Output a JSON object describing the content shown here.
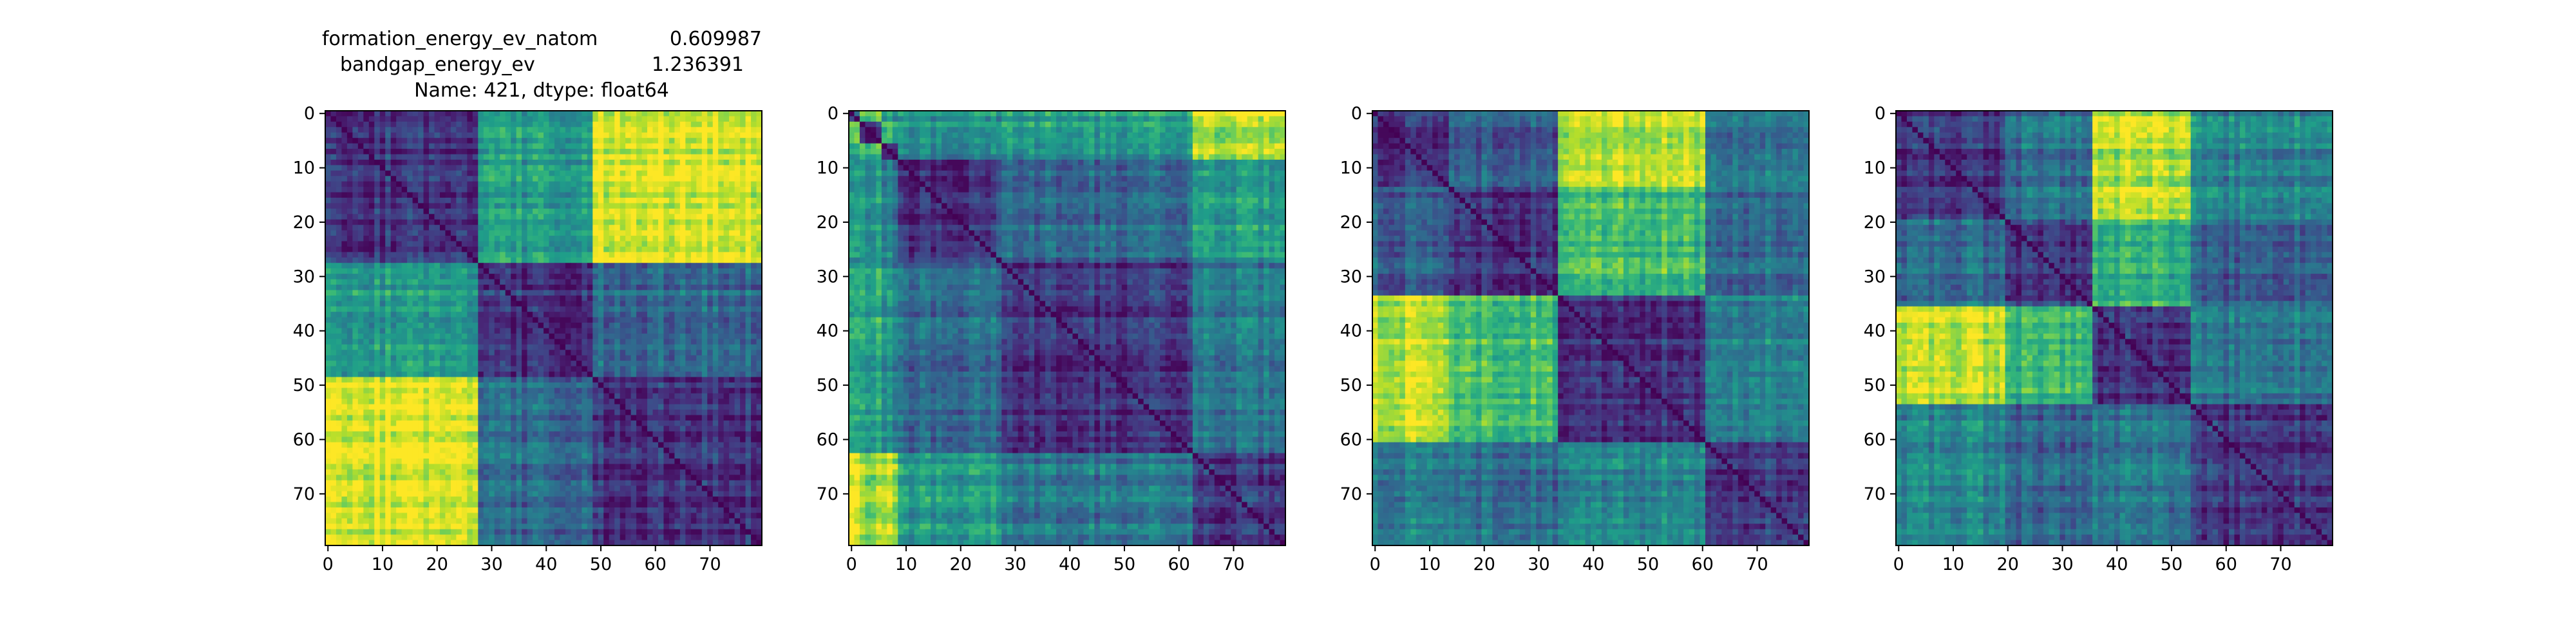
{
  "title": {
    "line1_name": "formation_energy_ev_natom",
    "line1_value": "0.609987",
    "line2_name": "bandgap_energy_ev",
    "line2_value": "1.236391",
    "line3": "Name: 421, dtype: float64"
  },
  "colors": {
    "colormap": "viridis",
    "cmap_stops": [
      "#440154",
      "#482878",
      "#3e4989",
      "#31688e",
      "#26828e",
      "#1f9e89",
      "#35b779",
      "#6ece58",
      "#b5de2b",
      "#fde725"
    ],
    "axes_frame": "#000000",
    "background": "#ffffff"
  },
  "chart_data": [
    {
      "type": "heatmap",
      "title": "",
      "size": 80,
      "clusters": [
        [
          0,
          28
        ],
        [
          28,
          49
        ],
        [
          49,
          80
        ]
      ],
      "block_levels": [
        [
          0.15,
          0.55,
          0.95
        ],
        [
          0.55,
          0.15,
          0.35
        ],
        [
          0.95,
          0.35,
          0.15
        ]
      ],
      "xticks": [
        0,
        10,
        20,
        30,
        40,
        50,
        60,
        70
      ],
      "yticks": [
        0,
        10,
        20,
        30,
        40,
        50,
        60,
        70
      ],
      "xlim": [
        0,
        80
      ],
      "ylim": [
        80,
        0
      ],
      "colormap": "viridis"
    },
    {
      "type": "heatmap",
      "title": "",
      "size": 80,
      "clusters": [
        [
          0,
          2
        ],
        [
          2,
          6
        ],
        [
          6,
          9
        ],
        [
          9,
          27
        ],
        [
          27,
          28
        ],
        [
          28,
          63
        ],
        [
          63,
          80
        ]
      ],
      "block_levels": [
        [
          0.15,
          0.75,
          0.55,
          0.5,
          0.35,
          0.55,
          0.95
        ],
        [
          0.75,
          0.15,
          0.7,
          0.55,
          0.55,
          0.6,
          0.85
        ],
        [
          0.55,
          0.7,
          0.15,
          0.45,
          0.4,
          0.5,
          0.9
        ],
        [
          0.5,
          0.55,
          0.45,
          0.15,
          0.3,
          0.35,
          0.55
        ],
        [
          0.35,
          0.55,
          0.4,
          0.3,
          0.15,
          0.3,
          0.5
        ],
        [
          0.55,
          0.6,
          0.5,
          0.35,
          0.3,
          0.15,
          0.4
        ],
        [
          0.95,
          0.85,
          0.9,
          0.55,
          0.5,
          0.4,
          0.15
        ]
      ],
      "xticks": [
        0,
        10,
        20,
        30,
        40,
        50,
        60,
        70
      ],
      "yticks": [
        0,
        10,
        20,
        30,
        40,
        50,
        60,
        70
      ],
      "xlim": [
        0,
        80
      ],
      "ylim": [
        80,
        0
      ],
      "colormap": "viridis"
    },
    {
      "type": "heatmap",
      "title": "",
      "size": 80,
      "clusters": [
        [
          0,
          14
        ],
        [
          14,
          34
        ],
        [
          34,
          61
        ],
        [
          61,
          80
        ]
      ],
      "block_levels": [
        [
          0.15,
          0.3,
          0.9,
          0.4
        ],
        [
          0.3,
          0.15,
          0.7,
          0.35
        ],
        [
          0.9,
          0.7,
          0.15,
          0.45
        ],
        [
          0.4,
          0.35,
          0.45,
          0.15
        ]
      ],
      "xticks": [
        0,
        10,
        20,
        30,
        40,
        50,
        60,
        70
      ],
      "yticks": [
        0,
        10,
        20,
        30,
        40,
        50,
        60,
        70
      ],
      "xlim": [
        0,
        80
      ],
      "ylim": [
        80,
        0
      ],
      "colormap": "viridis"
    },
    {
      "type": "heatmap",
      "title": "",
      "size": 80,
      "clusters": [
        [
          0,
          20
        ],
        [
          20,
          36
        ],
        [
          36,
          54
        ],
        [
          54,
          80
        ]
      ],
      "block_levels": [
        [
          0.15,
          0.35,
          0.9,
          0.45
        ],
        [
          0.35,
          0.15,
          0.65,
          0.3
        ],
        [
          0.9,
          0.65,
          0.15,
          0.4
        ],
        [
          0.45,
          0.3,
          0.4,
          0.15
        ]
      ],
      "xticks": [
        0,
        10,
        20,
        30,
        40,
        50,
        60,
        70
      ],
      "yticks": [
        0,
        10,
        20,
        30,
        40,
        50,
        60,
        70
      ],
      "xlim": [
        0,
        80
      ],
      "ylim": [
        80,
        0
      ],
      "colormap": "viridis"
    }
  ]
}
